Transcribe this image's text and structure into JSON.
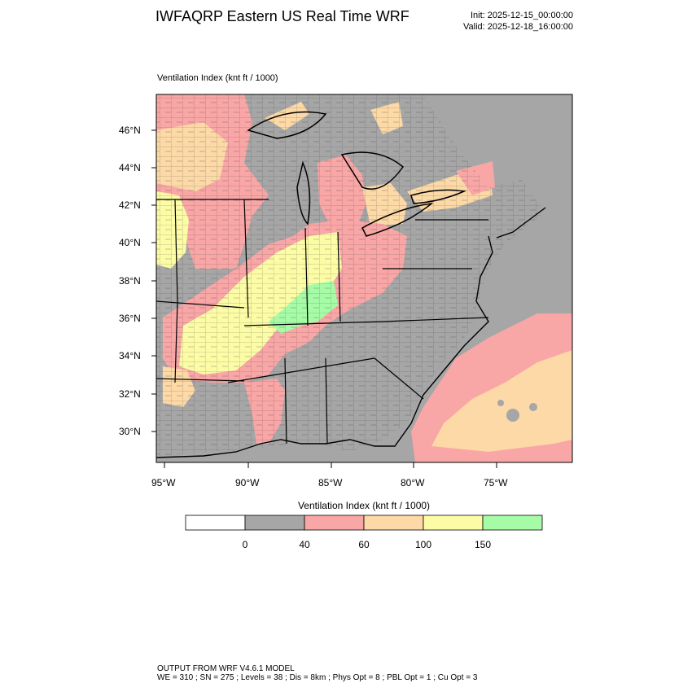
{
  "header": {
    "title": "IWFAQRP Eastern US Real Time WRF",
    "init": "Init: 2025-12-15_00:00:00",
    "valid": "Valid: 2025-12-18_16:00:00"
  },
  "field": {
    "title": "Ventilation Index   (knt ft / 1000)"
  },
  "map": {
    "lat_labels": [
      "46°N",
      "44°N",
      "42°N",
      "40°N",
      "38°N",
      "36°N",
      "34°N",
      "32°N",
      "30°N"
    ],
    "lon_labels": [
      "95°W",
      "90°W",
      "85°W",
      "80°W",
      "75°W"
    ],
    "background_color": "#a6a6a6"
  },
  "colorbar": {
    "title": "Ventilation Index  (knt ft / 1000)",
    "colors": [
      "#ffffff",
      "#a6a6a6",
      "#f9a6a6",
      "#fcd9a6",
      "#fcfca6",
      "#a6fca6"
    ],
    "labels": [
      "0",
      "40",
      "60",
      "100",
      "150"
    ]
  },
  "footer": {
    "line1": "OUTPUT FROM WRF V4.6.1 MODEL",
    "line2": "WE = 310 ; SN = 275 ; Levels = 38 ; Dis = 8km ; Phys Opt = 8 ; PBL Opt = 1 ; Cu Opt = 3"
  }
}
